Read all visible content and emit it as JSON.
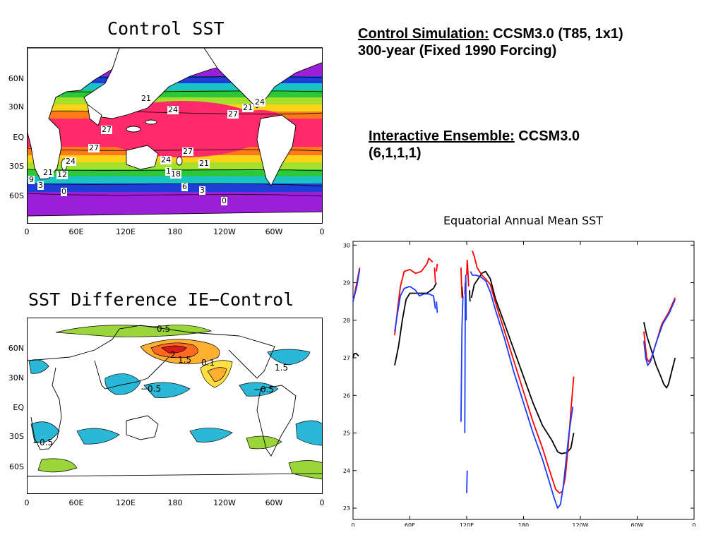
{
  "header": {
    "control_sim_label": "Control Simulation:",
    "control_sim_value": " CCSM3.0 (T85, 1x1)",
    "control_sim_line2": "300-year (Fixed 1990 Forcing)",
    "ie_label": "Interactive Ensemble:",
    "ie_value": " CCSM3.0",
    "ie_line2": "(6,1,1,1)"
  },
  "map_control": {
    "title": "Control SST",
    "lat_labels": [
      "60N",
      "30N",
      "EQ",
      "30S",
      "60S"
    ],
    "lon_labels": [
      "0",
      "60E",
      "120E",
      "180",
      "120W",
      "60W",
      "0"
    ],
    "contour_labels": [
      "21",
      "24",
      "27",
      "21",
      "24",
      "27",
      "27",
      "24",
      "21",
      "24",
      "27",
      "21",
      "12",
      "9",
      "3",
      "0",
      "1",
      "18",
      "6",
      "3",
      "0"
    ]
  },
  "map_diff": {
    "title": "SST Difference IE−Control",
    "lat_labels": [
      "60N",
      "30N",
      "EQ",
      "30S",
      "60S"
    ],
    "lon_labels": [
      "0",
      "60E",
      "120E",
      "180",
      "120W",
      "60W",
      "0"
    ],
    "contour_labels": [
      "0.5",
      "2",
      "1.5",
      "0.1",
      "1.5",
      "−0.5",
      "−0.5",
      "−0.5"
    ]
  },
  "chart_data": {
    "type": "line",
    "title": "Equatorial Annual Mean SST",
    "xlabel": "",
    "ylabel": "",
    "x_ticks": [
      "0",
      "60E",
      "120E",
      "180",
      "120W",
      "60W",
      "0"
    ],
    "x_tick_values": [
      0,
      60,
      120,
      180,
      240,
      300,
      360
    ],
    "xlim": [
      0,
      360
    ],
    "ylim": [
      22.7,
      30.1
    ],
    "y_ticks": [
      23,
      24,
      25,
      26,
      27,
      28,
      29,
      30
    ],
    "grid": false,
    "legend": "none",
    "series": [
      {
        "color": "#000000",
        "segments": [
          [
            [
              0,
              27.0
            ],
            [
              1,
              27.1
            ],
            [
              3,
              27.12
            ],
            [
              6,
              27.05
            ]
          ],
          [
            [
              44,
              26.8
            ],
            [
              48,
              27.3
            ],
            [
              52,
              28.0
            ],
            [
              56,
              28.55
            ],
            [
              60,
              28.72
            ],
            [
              70,
              28.72
            ],
            [
              78,
              28.72
            ],
            [
              85,
              28.85
            ],
            [
              88,
              29.0
            ]
          ],
          [
            [
              115,
              28.9
            ],
            [
              116,
              28.6
            ]
          ],
          [
            [
              118,
              28.9
            ],
            [
              119,
              28.85
            ]
          ],
          [
            [
              123,
              28.8
            ],
            [
              123.5,
              28.5
            ]
          ],
          [
            [
              125,
              28.6
            ],
            [
              128,
              28.95
            ],
            [
              132,
              29.1
            ],
            [
              136,
              29.25
            ],
            [
              140,
              29.3
            ],
            [
              145,
              29.1
            ],
            [
              150,
              28.6
            ],
            [
              160,
              27.9
            ],
            [
              170,
              27.2
            ],
            [
              180,
              26.5
            ],
            [
              190,
              25.8
            ],
            [
              200,
              25.2
            ],
            [
              210,
              24.8
            ],
            [
              216,
              24.5
            ],
            [
              220,
              24.45
            ],
            [
              226,
              24.48
            ],
            [
              230,
              24.6
            ],
            [
              233,
              25.0
            ]
          ],
          [
            [
              307,
              27.95
            ],
            [
              310,
              27.6
            ],
            [
              315,
              27.2
            ],
            [
              320,
              26.8
            ],
            [
              325,
              26.5
            ],
            [
              328,
              26.3
            ],
            [
              331,
              26.2
            ],
            [
              333,
              26.3
            ],
            [
              336,
              26.6
            ],
            [
              340,
              27.0
            ]
          ]
        ]
      },
      {
        "color": "#ff0000",
        "segments": [
          [
            [
              0,
              28.5
            ],
            [
              4,
              29.0
            ],
            [
              7,
              29.4
            ]
          ],
          [
            [
              44,
              27.6
            ],
            [
              47,
              28.3
            ],
            [
              50,
              28.9
            ],
            [
              54,
              29.3
            ],
            [
              60,
              29.35
            ],
            [
              66,
              29.25
            ],
            [
              72,
              29.3
            ],
            [
              78,
              29.5
            ],
            [
              80,
              29.65
            ],
            [
              84,
              29.55
            ]
          ],
          [
            [
              86,
              29.4
            ],
            [
              87,
              29.0
            ]
          ],
          [
            [
              88,
              29.3
            ],
            [
              89,
              29.5
            ]
          ],
          [
            [
              114,
              29.4
            ],
            [
              115,
              28.6
            ]
          ],
          [
            [
              118,
              28.7
            ],
            [
              118.5,
              29.0
            ]
          ],
          [
            [
              120,
              29.2
            ],
            [
              120.5,
              29.6
            ],
            [
              121,
              29.45
            ],
            [
              122,
              28.9
            ]
          ],
          [
            [
              126,
              29.85
            ],
            [
              128,
              29.7
            ],
            [
              131,
              29.4
            ],
            [
              136,
              29.2
            ],
            [
              140,
              29.1
            ],
            [
              145,
              28.95
            ],
            [
              150,
              28.5
            ],
            [
              160,
              27.7
            ],
            [
              170,
              26.9
            ],
            [
              180,
              26.1
            ],
            [
              190,
              25.3
            ],
            [
              200,
              24.6
            ],
            [
              205,
              24.2
            ],
            [
              210,
              23.8
            ],
            [
              214,
              23.5
            ],
            [
              218,
              23.4
            ],
            [
              221,
              23.45
            ],
            [
              224,
              23.8
            ],
            [
              227,
              24.6
            ],
            [
              230,
              25.6
            ],
            [
              233,
              26.5
            ]
          ],
          [
            [
              307,
              27.7
            ],
            [
              310,
              27.0
            ],
            [
              312,
              26.9
            ],
            [
              315,
              27.0
            ],
            [
              320,
              27.4
            ],
            [
              326,
              27.9
            ],
            [
              333,
              28.2
            ],
            [
              340,
              28.6
            ]
          ]
        ]
      },
      {
        "color": "#1a3cff",
        "segments": [
          [
            [
              0,
              28.5
            ],
            [
              4,
              28.9
            ],
            [
              7,
              29.35
            ]
          ],
          [
            [
              44,
              27.7
            ],
            [
              47,
              28.2
            ],
            [
              50,
              28.65
            ],
            [
              54,
              28.85
            ],
            [
              60,
              28.9
            ],
            [
              66,
              28.8
            ],
            [
              70,
              28.65
            ],
            [
              75,
              28.7
            ],
            [
              80,
              28.7
            ],
            [
              85,
              28.65
            ],
            [
              87,
              28.3
            ]
          ],
          [
            [
              88,
              28.5
            ],
            [
              89,
              28.2
            ]
          ],
          [
            [
              114,
              25.3
            ],
            [
              115,
              27.8
            ],
            [
              116,
              28.6
            ]
          ],
          [
            [
              118,
              25.0
            ],
            [
              118.5,
              28.6
            ],
            [
              119,
              29.2
            ],
            [
              119.5,
              28.0
            ]
          ],
          [
            [
              120,
              23.4
            ],
            [
              120.5,
              24.0
            ]
          ],
          [
            [
              124,
              29.3
            ],
            [
              126,
              29.2
            ],
            [
              130,
              29.2
            ],
            [
              135,
              29.15
            ],
            [
              140,
              29.05
            ],
            [
              145,
              28.75
            ],
            [
              150,
              28.3
            ],
            [
              160,
              27.5
            ],
            [
              170,
              26.6
            ],
            [
              180,
              25.8
            ],
            [
              190,
              25.0
            ],
            [
              200,
              24.3
            ],
            [
              206,
              23.8
            ],
            [
              212,
              23.3
            ],
            [
              216,
              23.0
            ],
            [
              219,
              23.1
            ],
            [
              222,
              23.6
            ],
            [
              225,
              24.3
            ],
            [
              228,
              25.0
            ],
            [
              232,
              25.7
            ]
          ],
          [
            [
              307,
              27.45
            ],
            [
              309,
              27.0
            ],
            [
              311,
              26.8
            ],
            [
              314,
              26.9
            ],
            [
              320,
              27.4
            ],
            [
              327,
              27.9
            ],
            [
              334,
              28.2
            ],
            [
              340,
              28.55
            ]
          ]
        ]
      }
    ]
  }
}
